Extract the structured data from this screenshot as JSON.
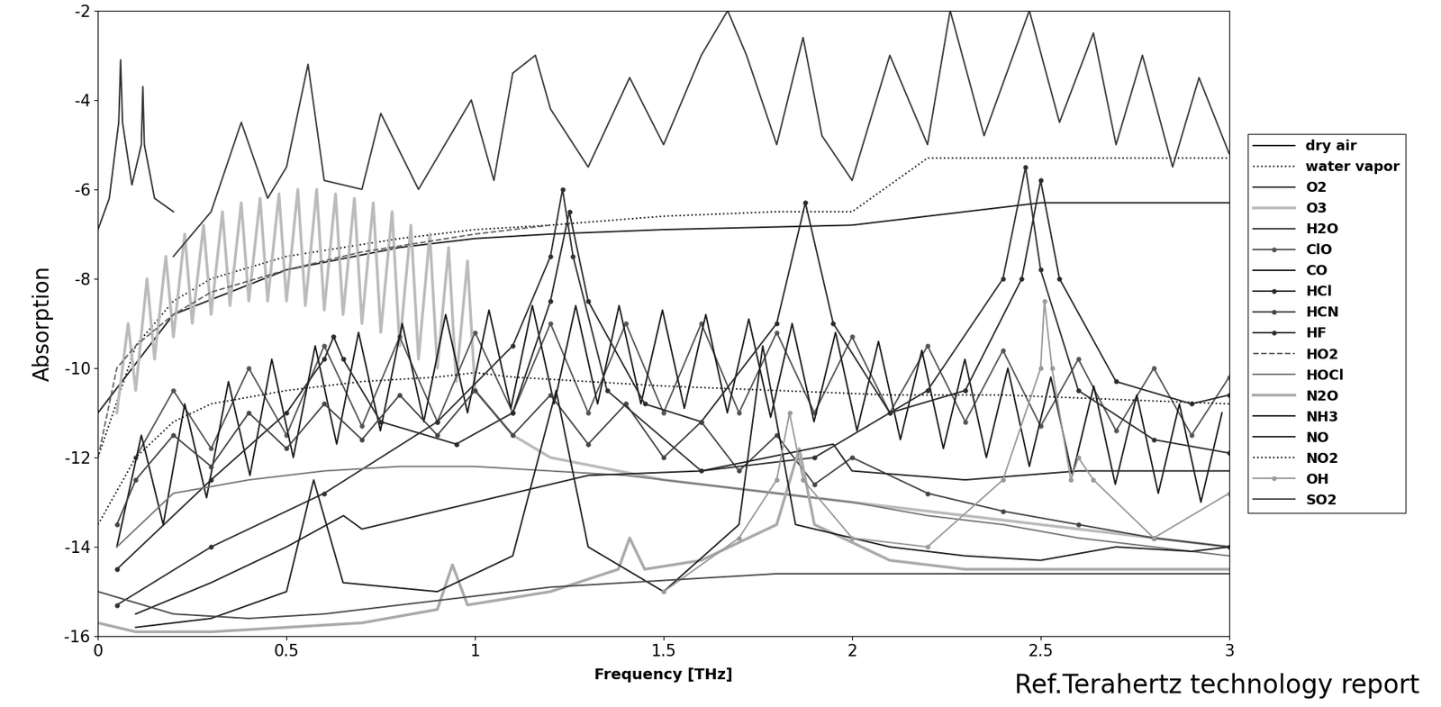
{
  "chart_data": {
    "type": "line",
    "y_label": "Absorption",
    "x_label": "Frequency [THz]",
    "annotation": "Ref.Terahertz technology report",
    "xlim": [
      0,
      3
    ],
    "xticks": [
      0,
      0.5,
      1,
      1.5,
      2,
      2.5,
      3
    ],
    "ylim": [
      -16,
      -2
    ],
    "yticks": [
      -16,
      -14,
      -12,
      -10,
      -8,
      -6,
      -4,
      -2
    ],
    "legend": "right",
    "grid": false,
    "series": [
      {
        "name": "dry air",
        "color": "#222222",
        "line_style": "solid",
        "x": [
          0,
          0.2,
          0.5,
          0.8,
          1.0,
          1.2,
          1.5,
          2.0,
          2.5,
          3.0
        ],
        "values": [
          -11,
          -8.8,
          -7.8,
          -7.3,
          -7.1,
          -7.0,
          -6.9,
          -6.8,
          -6.3,
          -6.3
        ]
      },
      {
        "name": "water vapor",
        "color": "#111111",
        "line_style": "dotted",
        "x": [
          0,
          0.1,
          0.2,
          0.3,
          0.5,
          0.8,
          1.0,
          1.2,
          1.5,
          1.8,
          2.0,
          2.2,
          2.5,
          3.0
        ],
        "values": [
          -12,
          -9.5,
          -8.5,
          -8,
          -7.5,
          -7.1,
          -6.9,
          -6.8,
          -6.6,
          -6.5,
          -6.5,
          -5.3,
          -5.3,
          -5.3
        ]
      },
      {
        "name": "O2",
        "color": "#333333",
        "line_style": "solid",
        "x": [
          0,
          0.03,
          0.055,
          0.06,
          0.065,
          0.09,
          0.115,
          0.119,
          0.123,
          0.15,
          0.2
        ],
        "values": [
          -6.9,
          -6.2,
          -4.5,
          -3.1,
          -4.5,
          -5.9,
          -5,
          -3.7,
          -5,
          -6.2,
          -6.5
        ]
      },
      {
        "name": "O3",
        "color": "#bbbbbb",
        "line_style": "solid",
        "x": [
          0.05,
          0.08,
          0.1,
          0.13,
          0.15,
          0.18,
          0.2,
          0.23,
          0.25,
          0.28,
          0.3,
          0.33,
          0.35,
          0.38,
          0.4,
          0.43,
          0.45,
          0.48,
          0.5,
          0.53,
          0.55,
          0.58,
          0.6,
          0.63,
          0.65,
          0.68,
          0.7,
          0.73,
          0.75,
          0.78,
          0.8,
          0.83,
          0.85,
          0.88,
          0.9,
          0.93,
          0.95,
          0.98,
          1.0,
          1.05,
          1.1,
          1.2,
          1.5,
          2.0,
          2.5,
          3.0
        ],
        "values": [
          -11,
          -9,
          -10.5,
          -8,
          -9.8,
          -7.5,
          -9.3,
          -7,
          -9,
          -6.8,
          -8.8,
          -6.5,
          -8.6,
          -6.3,
          -8.5,
          -6.2,
          -8.5,
          -6.1,
          -8.5,
          -6,
          -8.6,
          -6,
          -8.7,
          -6.1,
          -8.8,
          -6.2,
          -9,
          -6.3,
          -9.2,
          -6.5,
          -9.5,
          -6.8,
          -9.8,
          -7,
          -10,
          -7.3,
          -10.3,
          -7.6,
          -10.5,
          -11,
          -11.5,
          -12,
          -12.5,
          -13,
          -13.5,
          -14
        ]
      },
      {
        "name": "H2O",
        "color": "#3a3a3a",
        "line_style": "solid",
        "x": [
          0.2,
          0.3,
          0.38,
          0.45,
          0.5,
          0.557,
          0.6,
          0.7,
          0.75,
          0.85,
          0.99,
          1.05,
          1.1,
          1.16,
          1.2,
          1.3,
          1.41,
          1.5,
          1.6,
          1.67,
          1.72,
          1.8,
          1.87,
          1.92,
          2.0,
          2.1,
          2.2,
          2.26,
          2.35,
          2.47,
          2.55,
          2.64,
          2.7,
          2.77,
          2.85,
          2.92,
          3.0
        ],
        "values": [
          -7.5,
          -6.5,
          -4.5,
          -6.2,
          -5.5,
          -3.2,
          -5.8,
          -6.0,
          -4.3,
          -6.0,
          -4.0,
          -5.8,
          -3.4,
          -3.0,
          -4.2,
          -5.5,
          -3.5,
          -5.0,
          -3.0,
          -2.0,
          -3.0,
          -5.0,
          -2.6,
          -4.8,
          -5.8,
          -3.0,
          -5.0,
          -2.0,
          -4.8,
          -2.0,
          -4.5,
          -2.5,
          -5.0,
          -3.0,
          -5.5,
          -3.5,
          -5.2
        ]
      },
      {
        "name": "ClO",
        "color": "#555555",
        "line_style": "solid",
        "marker": "circle",
        "x": [
          0.1,
          0.2,
          0.3,
          0.4,
          0.5,
          0.6,
          0.7,
          0.8,
          0.9,
          1.0,
          1.1,
          1.2,
          1.3,
          1.4,
          1.5,
          1.6,
          1.7,
          1.8,
          1.9,
          2.0,
          2.1,
          2.2,
          2.3,
          2.4,
          2.5,
          2.6,
          2.7,
          2.8,
          2.9,
          3.0
        ],
        "values": [
          -12,
          -10.5,
          -11.8,
          -10,
          -11.5,
          -9.5,
          -11.3,
          -9.3,
          -11.2,
          -9.2,
          -11,
          -9,
          -11,
          -9,
          -11,
          -9,
          -11,
          -9.2,
          -11,
          -9.3,
          -11,
          -9.5,
          -11.2,
          -9.6,
          -11.3,
          -9.8,
          -11.4,
          -10,
          -11.5,
          -10.2
        ]
      },
      {
        "name": "CO",
        "color": "#1a1a1a",
        "line_style": "solid",
        "x": [
          0.05,
          0.115,
          0.173,
          0.23,
          0.288,
          0.346,
          0.403,
          0.461,
          0.518,
          0.576,
          0.633,
          0.691,
          0.749,
          0.807,
          0.864,
          0.922,
          0.98,
          1.037,
          1.095,
          1.152,
          1.21,
          1.267,
          1.325,
          1.382,
          1.44,
          1.497,
          1.555,
          1.612,
          1.669,
          1.726,
          1.784,
          1.841,
          1.899,
          1.956,
          2.013,
          2.07,
          2.128,
          2.185,
          2.242,
          2.299,
          2.356,
          2.413,
          2.47,
          2.527,
          2.584,
          2.641,
          2.698,
          2.755,
          2.812,
          2.868,
          2.925,
          2.981
        ],
        "values": [
          -14,
          -11.5,
          -13.5,
          -10.8,
          -12.9,
          -10.3,
          -12.4,
          -9.8,
          -12.0,
          -9.5,
          -11.7,
          -9.2,
          -11.4,
          -9.0,
          -11.2,
          -8.8,
          -11.0,
          -8.7,
          -10.9,
          -8.6,
          -10.8,
          -8.6,
          -10.8,
          -8.6,
          -10.8,
          -8.7,
          -10.9,
          -8.8,
          -11.0,
          -8.9,
          -11.1,
          -9.0,
          -11.2,
          -9.2,
          -11.4,
          -9.4,
          -11.6,
          -9.6,
          -11.8,
          -9.8,
          -12.0,
          -10.0,
          -12.2,
          -10.2,
          -12.4,
          -10.4,
          -12.6,
          -10.6,
          -12.8,
          -10.8,
          -13.0,
          -11.0
        ]
      },
      {
        "name": "HCl",
        "color": "#2a2a2a",
        "line_style": "solid",
        "marker": "circle",
        "x": [
          0.05,
          0.3,
          0.5,
          0.6,
          0.625,
          0.65,
          0.75,
          0.95,
          1.1,
          1.2,
          1.25,
          1.3,
          1.45,
          1.6,
          1.8,
          1.876,
          1.95,
          2.1,
          2.3,
          2.45,
          2.5,
          2.55,
          2.7,
          2.9,
          3.0
        ],
        "values": [
          -14.5,
          -12.5,
          -11,
          -9.8,
          -9.3,
          -9.8,
          -11.2,
          -11.7,
          -11,
          -8.5,
          -6.5,
          -8.5,
          -10.8,
          -11.2,
          -9,
          -6.3,
          -9,
          -11,
          -10.5,
          -8,
          -5.8,
          -8,
          -10.3,
          -10.8,
          -10.6
        ]
      },
      {
        "name": "HCN",
        "color": "#444444",
        "line_style": "solid",
        "marker": "circle",
        "x": [
          0.05,
          0.1,
          0.2,
          0.3,
          0.4,
          0.5,
          0.6,
          0.7,
          0.8,
          0.9,
          1.0,
          1.1,
          1.2,
          1.3,
          1.4,
          1.5,
          1.6,
          1.7,
          1.8,
          1.9,
          2.0,
          2.2,
          2.4,
          2.6,
          2.8,
          3.0
        ],
        "values": [
          -13.5,
          -12.5,
          -11.5,
          -12.2,
          -11,
          -11.8,
          -10.8,
          -11.6,
          -10.6,
          -11.5,
          -10.5,
          -11.5,
          -10.6,
          -11.7,
          -10.8,
          -12,
          -11.2,
          -12.3,
          -11.5,
          -12.6,
          -12,
          -12.8,
          -13.2,
          -13.5,
          -13.8,
          -14
        ]
      },
      {
        "name": "HF",
        "color": "#303030",
        "line_style": "solid",
        "marker": "circle",
        "x": [
          0.05,
          0.3,
          0.6,
          0.9,
          1.1,
          1.2,
          1.232,
          1.26,
          1.35,
          1.6,
          1.9,
          2.2,
          2.4,
          2.46,
          2.5,
          2.6,
          2.8,
          3.0
        ],
        "values": [
          -15.3,
          -14,
          -12.8,
          -11.2,
          -9.5,
          -7.5,
          -6.0,
          -7.5,
          -10.5,
          -12.3,
          -12,
          -10.5,
          -8,
          -5.5,
          -7.8,
          -10.5,
          -11.6,
          -11.9
        ]
      },
      {
        "name": "HO2",
        "color": "#666666",
        "line_style": "dashed",
        "x": [
          0,
          0.05,
          0.1,
          0.2,
          0.3,
          0.5,
          0.7,
          1.0,
          1.2
        ],
        "values": [
          -12,
          -10,
          -9.5,
          -8.8,
          -8.3,
          -7.8,
          -7.4,
          -7,
          -6.8
        ]
      },
      {
        "name": "HOCl",
        "color": "#777777",
        "line_style": "solid",
        "x": [
          0.05,
          0.2,
          0.4,
          0.6,
          0.8,
          1.0,
          1.2,
          1.4,
          1.6,
          1.8,
          2.0,
          2.2,
          2.4,
          2.6,
          2.8,
          3.0
        ],
        "values": [
          -14,
          -12.8,
          -12.5,
          -12.3,
          -12.2,
          -12.2,
          -12.3,
          -12.4,
          -12.6,
          -12.8,
          -13,
          -13.3,
          -13.5,
          -13.8,
          -14,
          -14.2
        ]
      },
      {
        "name": "N2O",
        "color": "#aaaaaa",
        "line_style": "solid",
        "x": [
          0,
          0.1,
          0.3,
          0.5,
          0.7,
          0.9,
          0.94,
          0.98,
          1.2,
          1.38,
          1.41,
          1.45,
          1.6,
          1.8,
          1.86,
          1.9,
          2.1,
          2.3,
          2.5,
          2.7,
          3.0
        ],
        "values": [
          -15.7,
          -15.9,
          -15.9,
          -15.8,
          -15.7,
          -15.4,
          -14.4,
          -15.3,
          -15.0,
          -14.5,
          -13.8,
          -14.5,
          -14.3,
          -13.5,
          -11.8,
          -13.5,
          -14.3,
          -14.5,
          -14.5,
          -14.5,
          -14.5
        ]
      },
      {
        "name": "NH3",
        "color": "#202020",
        "line_style": "solid",
        "x": [
          0.1,
          0.3,
          0.5,
          0.572,
          0.65,
          0.9,
          1.1,
          1.215,
          1.3,
          1.5,
          1.7,
          1.763,
          1.85,
          2.1,
          2.3,
          2.5,
          2.7,
          2.9,
          3.0
        ],
        "values": [
          -15.8,
          -15.6,
          -15,
          -12.5,
          -14.8,
          -15,
          -14.2,
          -10.5,
          -14,
          -15,
          -13.5,
          -9.5,
          -13.5,
          -14,
          -14.2,
          -14.3,
          -14,
          -14.1,
          -14
        ]
      },
      {
        "name": "NO",
        "color": "#252525",
        "line_style": "solid",
        "x": [
          0.1,
          0.3,
          0.5,
          0.651,
          0.7,
          1.0,
          1.2,
          1.3,
          1.6,
          1.95,
          2.0,
          2.3,
          2.6,
          3.0
        ],
        "values": [
          -15.5,
          -14.8,
          -14,
          -13.3,
          -13.6,
          -13,
          -12.6,
          -12.4,
          -12.3,
          -11.7,
          -12.3,
          -12.5,
          -12.3,
          -12.3
        ]
      },
      {
        "name": "NO2",
        "color": "#111111",
        "line_style": "dotted",
        "x": [
          0,
          0.1,
          0.2,
          0.3,
          0.5,
          0.7,
          0.9,
          1.0,
          1.1,
          1.3,
          1.5,
          1.8,
          2.1,
          2.4,
          2.7,
          3.0
        ],
        "values": [
          -13.5,
          -12,
          -11.2,
          -10.8,
          -10.5,
          -10.3,
          -10.2,
          -10.1,
          -10.2,
          -10.3,
          -10.4,
          -10.5,
          -10.6,
          -10.6,
          -10.7,
          -10.8
        ]
      },
      {
        "name": "OH",
        "color": "#999999",
        "line_style": "solid",
        "marker": "circle",
        "x": [
          1.5,
          1.7,
          1.8,
          1.834,
          1.87,
          2.0,
          2.2,
          2.4,
          2.5,
          2.51,
          2.53,
          2.58,
          2.6,
          2.64,
          2.8,
          3.0
        ],
        "values": [
          -15,
          -13.8,
          -12.5,
          -11,
          -12.5,
          -13.8,
          -14,
          -12.5,
          -10,
          -8.5,
          -10,
          -12.5,
          -12,
          -12.5,
          -13.8,
          -12.8
        ]
      },
      {
        "name": "SO2",
        "color": "#4a4a4a",
        "line_style": "solid",
        "x": [
          0,
          0.2,
          0.4,
          0.6,
          0.8,
          1.0,
          1.2,
          1.4,
          1.6,
          1.8,
          2.0,
          2.2,
          2.4,
          2.6,
          2.8,
          3.0
        ],
        "values": [
          -15,
          -15.5,
          -15.6,
          -15.5,
          -15.3,
          -15.1,
          -14.9,
          -14.8,
          -14.7,
          -14.6,
          -14.6,
          -14.6,
          -14.6,
          -14.6,
          -14.6,
          -14.6
        ]
      }
    ]
  }
}
